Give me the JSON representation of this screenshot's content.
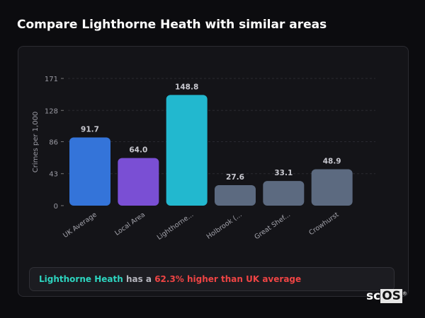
{
  "title": "Compare Lighthorne Heath with similar areas",
  "chart_data": {
    "type": "bar",
    "title": "",
    "xlabel": "",
    "ylabel": "Crimes per 1,000",
    "ylim": [
      0,
      171
    ],
    "yticks": [
      0,
      43,
      86,
      128,
      171
    ],
    "grid": true,
    "categories": [
      "UK Average",
      "Local Area",
      "Lighthorne...",
      "Holbrook (...",
      "Great Shef...",
      "Crowhurst"
    ],
    "values": [
      91.7,
      64.0,
      148.8,
      27.6,
      33.1,
      48.9
    ],
    "value_labels": [
      "91.7",
      "64.0",
      "148.8",
      "27.6",
      "33.1",
      "48.9"
    ],
    "colors": [
      "#3474d9",
      "#7a4fd4",
      "#22b8cf",
      "#5c6a80",
      "#5c6a80",
      "#5c6a80"
    ]
  },
  "summary": {
    "area": "Lighthorne Heath",
    "middle": " has a ",
    "difference": "62.3% higher than UK average"
  },
  "logo": {
    "sc": "sc",
    "os": "OS",
    "mark": "®"
  }
}
